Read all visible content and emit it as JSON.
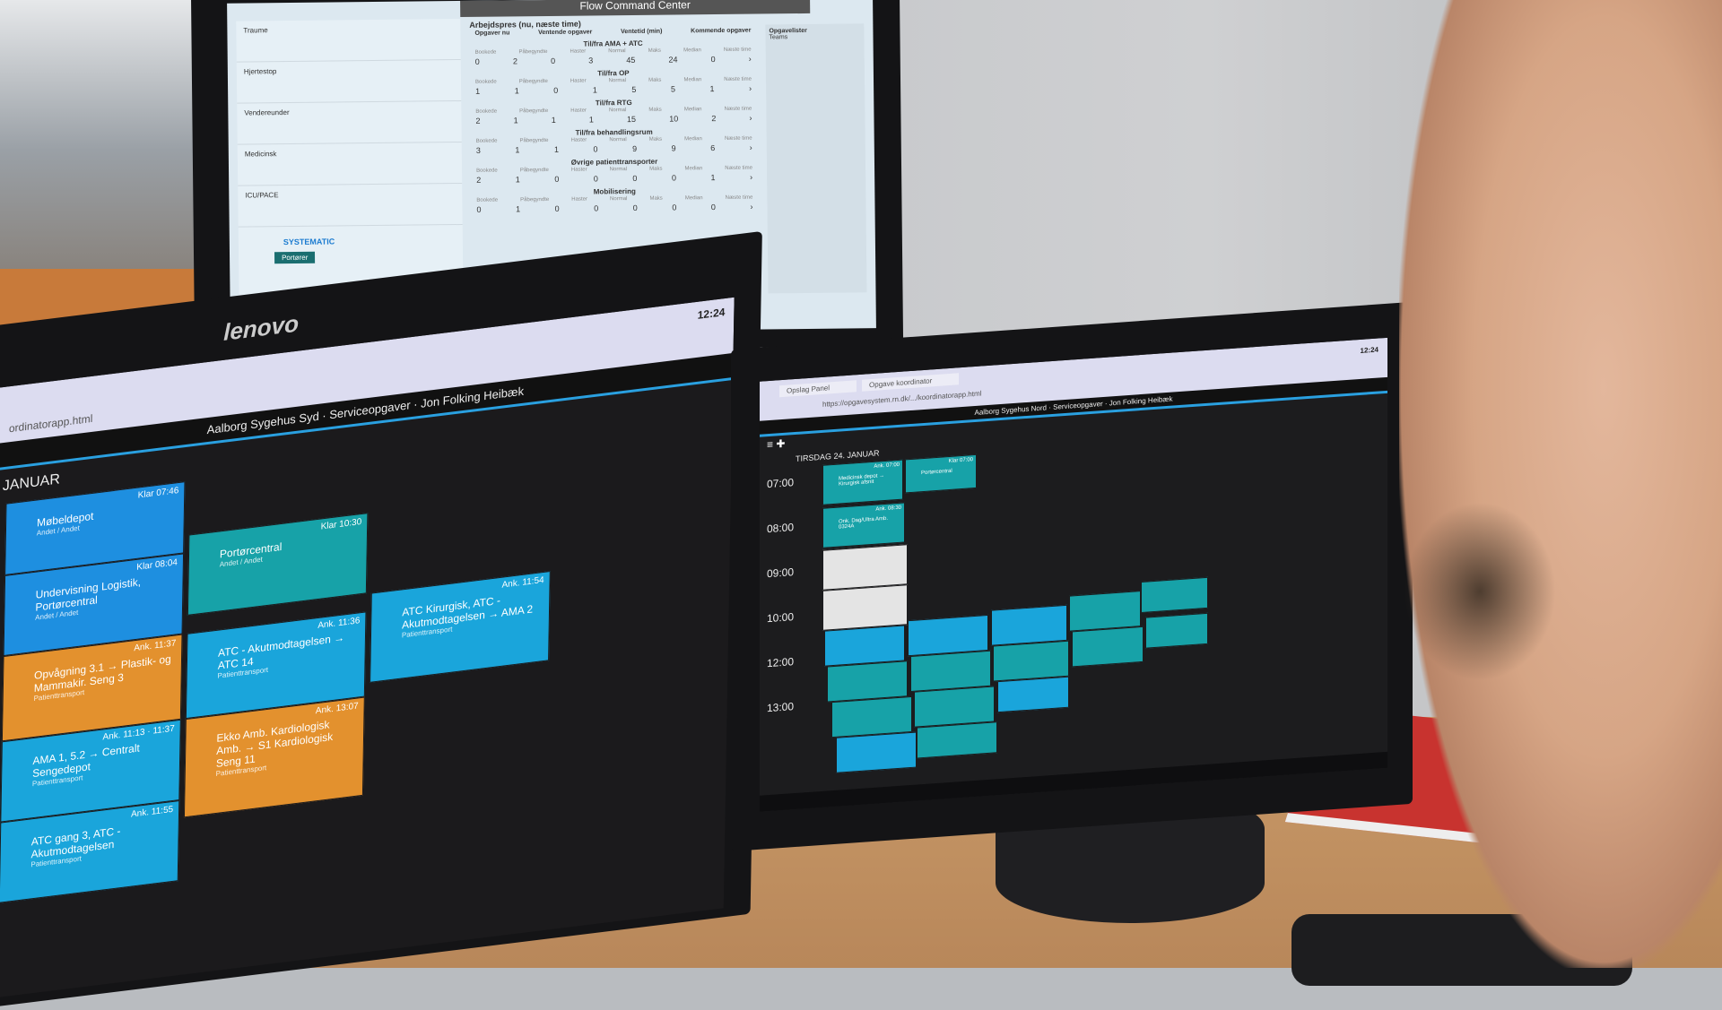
{
  "top_monitor": {
    "title": "Flow Command Center",
    "section_title": "Arbejdspres (nu, næste time)",
    "col_headers": [
      "Opgaver nu",
      "Ventende opgaver",
      "Ventetid (min)",
      "Kommende opgaver"
    ],
    "left_items": [
      "Traume",
      "Hjertestop",
      "Vendereunder",
      "Medicinsk",
      "ICU/PACE"
    ],
    "right_title": "Opgavelister",
    "right_teams_label": "Teams",
    "sections": [
      {
        "name": "Til/fra AMA + ATC",
        "values": [
          "0",
          "2",
          "0",
          "3",
          "45",
          "24",
          "0"
        ]
      },
      {
        "name": "Til/fra OP",
        "values": [
          "1",
          "1",
          "0",
          "1",
          "5",
          "5",
          "1"
        ]
      },
      {
        "name": "Til/fra RTG",
        "values": [
          "2",
          "1",
          "1",
          "1",
          "15",
          "10",
          "2"
        ]
      },
      {
        "name": "Til/fra behandlingsrum",
        "values": [
          "3",
          "1",
          "1",
          "0",
          "9",
          "9",
          "6"
        ]
      },
      {
        "name": "Øvrige patienttransporter",
        "values": [
          "2",
          "1",
          "0",
          "0",
          "0",
          "0",
          "1"
        ]
      },
      {
        "name": "Mobilisering",
        "values": [
          "0",
          "1",
          "0",
          "0",
          "0",
          "0",
          "0"
        ]
      }
    ],
    "sub_labels": [
      "Bookede",
      "Påbegyndte",
      "Haster",
      "Normal",
      "Maks",
      "Median",
      "Næste time"
    ],
    "brand": "SYSTEMATIC",
    "tab": "Portører"
  },
  "left_monitor": {
    "brand": "lenovo",
    "url": "ordinatorapp.html",
    "time": "12:24",
    "header": "Aalborg Sygehus Syd · Serviceopgaver · Jon Folking Heibæk",
    "day": "JANUAR",
    "cards": [
      {
        "name": "Møbeldepot",
        "sub": "Andet / Andet",
        "status": "Klar 07:46",
        "color": "#1e8fe0"
      },
      {
        "name": "Undervisning Logistik, Portørcentral",
        "sub": "Andet / Andet",
        "status": "Klar 08:04",
        "color": "#1e8fe0"
      },
      {
        "name": "Portørcentral",
        "sub": "Andet / Andet",
        "status": "Klar 10:30",
        "color": "#17a2a8"
      },
      {
        "name": "Opvågning 3.1 → Plastik- og Mammakir. Seng 3",
        "sub": "Patienttransport",
        "status": "Ank. 11:37",
        "color": "#e3912e"
      },
      {
        "name": "AMA 1, 5.2 → Centralt Sengedepot",
        "sub": "Patienttransport",
        "status": "Ank. 11:13 · 11:37",
        "color": "#1aa5db"
      },
      {
        "name": "ATC - Akutmodtagelsen → ATC 14",
        "sub": "Patienttransport",
        "status": "Ank. 11:36",
        "color": "#1aa5db"
      },
      {
        "name": "ATC gang 3, ATC - Akutmodtagelsen",
        "sub": "Patienttransport",
        "status": "Ank. 11:55",
        "color": "#1aa5db"
      },
      {
        "name": "Ekko Amb. Kardiologisk Amb. → S1 Kardiologisk Seng 11",
        "sub": "Patienttransport",
        "status": "Ank. 13:07",
        "color": "#e3912e"
      },
      {
        "name": "ATC Kirurgisk, ATC - Akutmodtagelsen → AMA 2",
        "sub": "Patienttransport",
        "status": "Ank. 11:54",
        "color": "#1aa5db"
      }
    ]
  },
  "right_monitor": {
    "tabs": [
      "Opslag Panel",
      "Opgave koordinator"
    ],
    "url": "https://opgavesystem.rn.dk/.../koordinatorapp.html",
    "time": "12:24",
    "header": "Aalborg Sygehus Nord · Serviceopgaver · Jon Folking Heibæk",
    "day": "TIRSDAG 24. JANUAR",
    "times": [
      "07:00",
      "08:00",
      "09:00",
      "10:00",
      "12:00",
      "13:00"
    ],
    "cards": [
      {
        "name": "Medicinsk depot → Kirurgisk afsnit",
        "status": "Ank. 07:00"
      },
      {
        "name": "Portørcentral",
        "status": "Klar 07:00"
      },
      {
        "name": "Onk. Dag/Ultra Amb. 0324A",
        "status": "Ank. 08:30"
      }
    ]
  }
}
